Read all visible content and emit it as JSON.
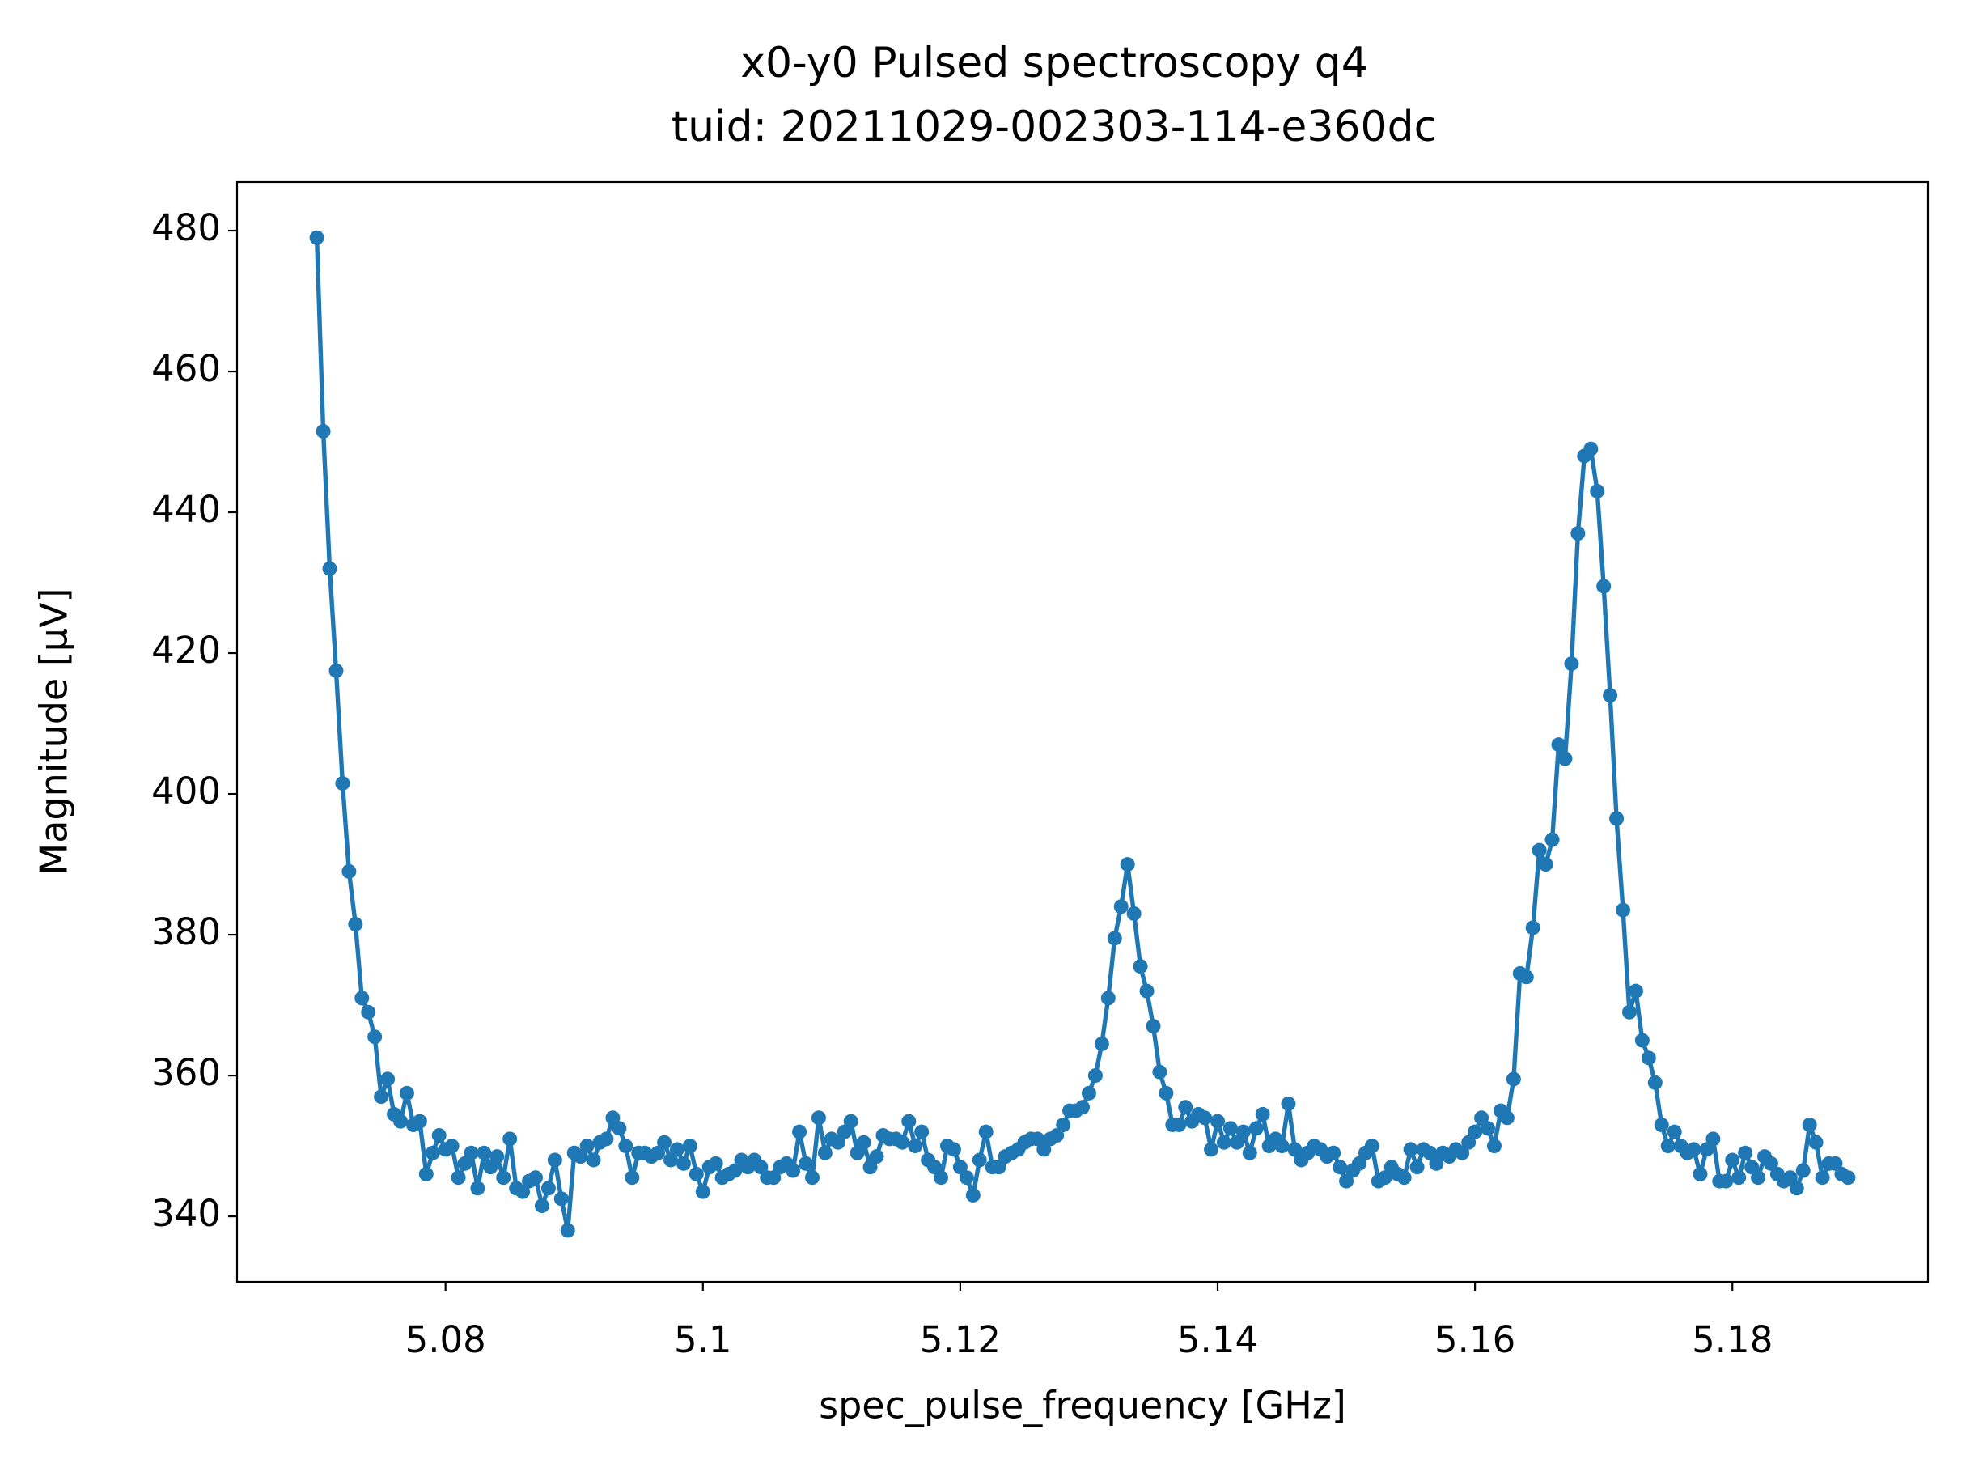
{
  "chart_data": {
    "type": "line",
    "title": "x0-y0 Pulsed spectroscopy q4",
    "subtitle": "tuid: 20211029-002303-114-e360dc",
    "x_label": "spec_pulse_frequency [GHz]",
    "y_label": "Magnitude [μV]",
    "xlim": [
      5.0638,
      5.1952
    ],
    "ylim": [
      330.7,
      486.9
    ],
    "xticks": [
      5.08,
      5.1,
      5.12,
      5.14,
      5.16,
      5.18
    ],
    "yticks": [
      340,
      360,
      380,
      400,
      420,
      440,
      460,
      480
    ],
    "grid": false,
    "x": [
      5.07,
      5.0705,
      5.071,
      5.0715,
      5.072,
      5.0725,
      5.073,
      5.0735,
      5.074,
      5.0745,
      5.075,
      5.0755,
      5.076,
      5.0765,
      5.077,
      5.0775,
      5.078,
      5.0785,
      5.079,
      5.0795,
      5.08,
      5.0805,
      5.081,
      5.0815,
      5.082,
      5.0825,
      5.083,
      5.0835,
      5.084,
      5.0845,
      5.085,
      5.0855,
      5.086,
      5.0865,
      5.087,
      5.0875,
      5.088,
      5.0885,
      5.089,
      5.0895,
      5.09,
      5.0905,
      5.091,
      5.0915,
      5.092,
      5.0925,
      5.093,
      5.0935,
      5.094,
      5.0945,
      5.095,
      5.0955,
      5.096,
      5.0965,
      5.097,
      5.0975,
      5.098,
      5.0985,
      5.099,
      5.0995,
      5.1,
      5.1005,
      5.101,
      5.1015,
      5.102,
      5.1025,
      5.103,
      5.1035,
      5.104,
      5.1045,
      5.105,
      5.1055,
      5.106,
      5.1065,
      5.107,
      5.1075,
      5.108,
      5.1085,
      5.109,
      5.1095,
      5.11,
      5.1105,
      5.111,
      5.1115,
      5.112,
      5.1125,
      5.113,
      5.1135,
      5.114,
      5.1145,
      5.115,
      5.1155,
      5.116,
      5.1165,
      5.117,
      5.1175,
      5.118,
      5.1185,
      5.119,
      5.1195,
      5.12,
      5.1205,
      5.121,
      5.1215,
      5.122,
      5.1225,
      5.123,
      5.1235,
      5.124,
      5.1245,
      5.125,
      5.1255,
      5.126,
      5.1265,
      5.127,
      5.1275,
      5.128,
      5.1285,
      5.129,
      5.1295,
      5.13,
      5.1305,
      5.131,
      5.1315,
      5.132,
      5.1325,
      5.133,
      5.1335,
      5.134,
      5.1345,
      5.135,
      5.1355,
      5.136,
      5.1365,
      5.137,
      5.1375,
      5.138,
      5.1385,
      5.139,
      5.1395,
      5.14,
      5.1405,
      5.141,
      5.1415,
      5.142,
      5.1425,
      5.143,
      5.1435,
      5.144,
      5.1445,
      5.145,
      5.1455,
      5.146,
      5.1465,
      5.147,
      5.1475,
      5.148,
      5.1485,
      5.149,
      5.1495,
      5.15,
      5.1505,
      5.151,
      5.1515,
      5.152,
      5.1525,
      5.153,
      5.1535,
      5.154,
      5.1545,
      5.155,
      5.1555,
      5.156,
      5.1565,
      5.157,
      5.1575,
      5.158,
      5.1585,
      5.159,
      5.1595,
      5.16,
      5.1605,
      5.161,
      5.1615,
      5.162,
      5.1625,
      5.163,
      5.1635,
      5.164,
      5.1645,
      5.165,
      5.1655,
      5.166,
      5.1665,
      5.167,
      5.1675,
      5.168,
      5.1685,
      5.169,
      5.1695,
      5.17,
      5.1705,
      5.171,
      5.1715,
      5.172,
      5.1725,
      5.173,
      5.1735,
      5.174,
      5.1745,
      5.175,
      5.1755,
      5.176,
      5.1765,
      5.177,
      5.1775,
      5.178,
      5.1785,
      5.179,
      5.1795,
      5.18,
      5.1805,
      5.181,
      5.1815,
      5.182,
      5.1825,
      5.183,
      5.1835,
      5.184,
      5.1845,
      5.185,
      5.1855,
      5.186,
      5.1865,
      5.187,
      5.1875,
      5.188,
      5.1885,
      5.189
    ],
    "series": [
      {
        "color": "#1f77b4",
        "values": [
          479,
          451.5,
          432,
          417.5,
          401.5,
          389,
          381.5,
          371,
          369,
          365.5,
          357,
          359.5,
          354.5,
          353.5,
          357.5,
          353,
          353.5,
          346,
          349,
          351.5,
          349.5,
          350,
          345.5,
          347.5,
          349,
          344,
          349,
          347,
          348.5,
          345.5,
          351,
          344,
          343.5,
          345,
          345.5,
          341.5,
          344,
          348,
          342.5,
          338,
          349,
          348.5,
          350,
          348,
          350.5,
          351,
          354,
          352.5,
          350,
          345.5,
          349,
          349,
          348.5,
          349,
          350.5,
          348,
          349.5,
          347.5,
          350,
          346,
          343.5,
          347,
          347.5,
          345.5,
          346,
          346.5,
          348,
          347,
          348,
          347,
          345.5,
          345.5,
          347,
          347.5,
          346.5,
          352,
          347.5,
          345.5,
          354,
          349,
          351,
          350.5,
          352,
          353.5,
          349,
          350.5,
          347,
          348.5,
          351.5,
          351,
          351,
          350.5,
          353.5,
          350,
          352,
          348,
          347,
          345.5,
          350,
          349.5,
          347,
          345.5,
          343,
          348,
          352,
          347,
          347,
          348.5,
          349,
          349.5,
          350.5,
          351,
          351,
          349.5,
          351,
          351.5,
          353,
          355,
          355,
          355.5,
          357.5,
          360,
          364.5,
          371,
          379.5,
          384,
          390,
          383,
          375.5,
          372,
          367,
          360.5,
          357.5,
          353,
          353,
          355.5,
          353.5,
          354.5,
          354,
          349.5,
          353.5,
          350.5,
          352.5,
          350.5,
          352,
          349,
          352.5,
          354.5,
          350,
          351,
          350,
          356,
          349.5,
          348,
          349,
          350,
          349.5,
          348.5,
          349,
          347,
          345,
          346.5,
          347.5,
          349,
          350,
          345,
          345.5,
          347,
          346,
          345.5,
          349.5,
          347,
          349.5,
          349,
          347.5,
          349,
          348.5,
          349.5,
          349,
          350.5,
          352,
          354,
          352.5,
          350,
          355,
          354,
          359.5,
          374.5,
          374,
          381,
          392,
          390,
          393.5,
          407,
          405,
          418.5,
          437,
          448,
          449,
          443,
          429.5,
          414,
          396.5,
          383.5,
          369,
          372,
          365,
          362.5,
          359,
          353,
          350,
          352,
          350,
          349,
          349.5,
          346,
          349.5,
          351,
          345,
          345,
          348,
          345.5,
          349,
          347,
          345.5,
          348.5,
          347.5,
          346,
          345,
          345.5,
          344,
          346.5,
          353,
          350.5,
          345.5,
          347.5,
          347.5,
          346,
          345.5
        ]
      }
    ]
  }
}
